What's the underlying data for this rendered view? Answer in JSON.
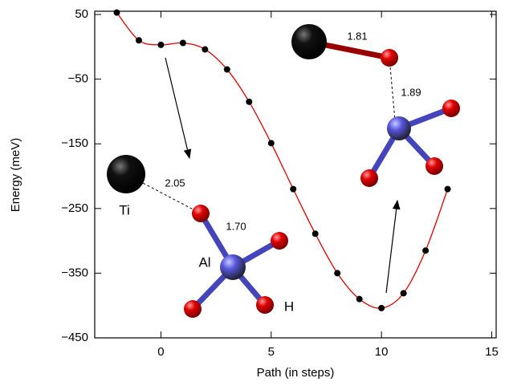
{
  "chart_data": {
    "type": "line",
    "x_label": "Path (in steps)",
    "y_label": "Energy (meV)",
    "x": [
      -2,
      -1,
      0,
      1,
      2,
      3,
      4,
      5,
      6,
      7,
      8,
      9,
      10,
      11,
      12,
      13
    ],
    "series": [
      {
        "name": "Energy",
        "color": "#e00000",
        "marker_color": "#000000",
        "values": [
          53,
          10,
          3,
          6,
          -4,
          -35,
          -85,
          -149,
          -220,
          -289,
          -350,
          -390,
          -404,
          -381,
          -315,
          -220
        ]
      }
    ],
    "xlim": [
      -3,
      15.2
    ],
    "ylim": [
      -450,
      55
    ],
    "xticks": [
      0,
      5,
      10,
      15
    ],
    "yticks": [
      50,
      {
        "value": -50,
        "label": "−50"
      },
      {
        "value": -150,
        "label": "−150"
      },
      {
        "value": -250,
        "label": "−250"
      },
      {
        "value": -350,
        "label": "−350"
      },
      {
        "value": -450,
        "label": "−450"
      }
    ],
    "annotations": [
      "1.81",
      "1.89",
      "2.05",
      "Ti",
      "1.70",
      "Al",
      "H"
    ]
  }
}
